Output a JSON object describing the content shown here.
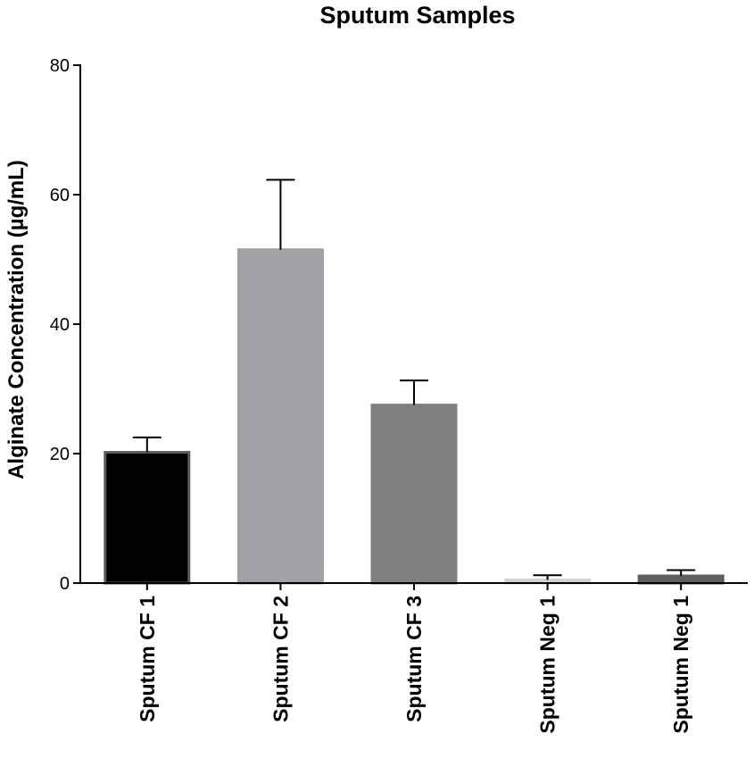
{
  "chart_data": {
    "type": "bar",
    "title": "Sputum Samples",
    "xlabel": "",
    "ylabel": "Alginate Concentration (µg/mL)",
    "ylim": [
      0,
      80
    ],
    "yticks": [
      0,
      20,
      40,
      60,
      80
    ],
    "ytick_labels": [
      "0",
      "20",
      "40",
      "60",
      "80"
    ],
    "categories": [
      "Sputum CF 1",
      "Sputum CF 2",
      "Sputum CF 3",
      "Sputum Neg 1",
      "Sputum Neg 1"
    ],
    "values": [
      20.2,
      51.5,
      27.5,
      0.5,
      1.1
    ],
    "errors": [
      2.3,
      10.8,
      3.8,
      0.7,
      0.9
    ],
    "bar_colors": [
      "#000000",
      "#a2a1a6",
      "#808080",
      "#d2d2d2",
      "#5f5f5f"
    ],
    "bar_edge_colors": [
      "#5a5a5a",
      "#a2a1a6",
      "#808080",
      "#d2d2d2",
      "#5f5f5f"
    ],
    "grid": false,
    "legend": "none"
  }
}
